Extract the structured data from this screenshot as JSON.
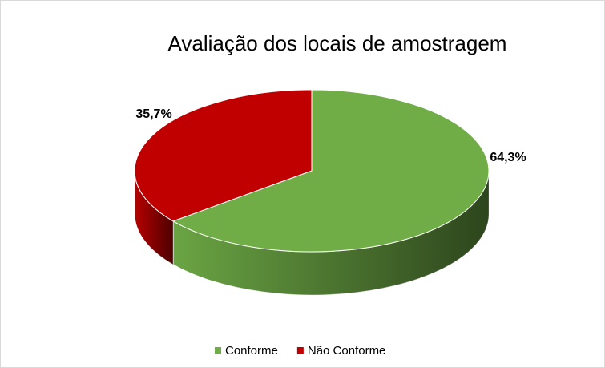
{
  "chart_data": {
    "type": "pie",
    "title": "Avaliação dos locais de amostragem",
    "categories": [
      "Conforme",
      "Não Conforme"
    ],
    "values": [
      64.3,
      35.7
    ],
    "value_labels": [
      "64,3%",
      "35,7%"
    ],
    "colors": [
      "#70ad47",
      "#c00000"
    ],
    "legend": "bottom"
  }
}
